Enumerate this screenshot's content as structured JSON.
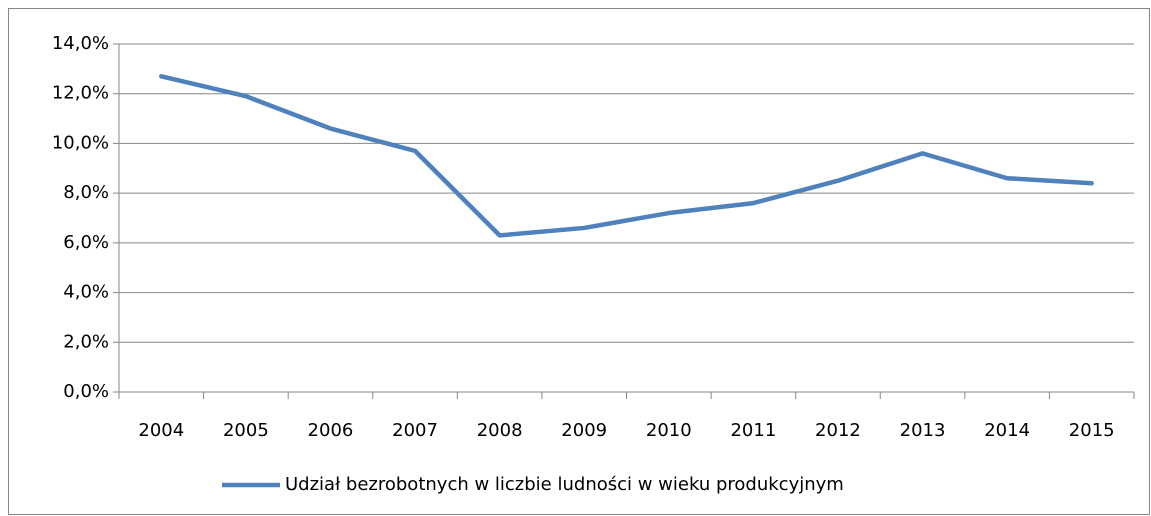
{
  "chart_data": {
    "type": "line",
    "categories": [
      "2004",
      "2005",
      "2006",
      "2007",
      "2008",
      "2009",
      "2010",
      "2011",
      "2012",
      "2013",
      "2014",
      "2015"
    ],
    "series": [
      {
        "name": "Udział bezrobotnych w liczbie ludności w wieku produkcyjnym",
        "color": "#4f81bd",
        "values": [
          12.7,
          11.9,
          10.6,
          9.7,
          6.3,
          6.6,
          7.2,
          7.6,
          8.5,
          9.6,
          8.6,
          8.4
        ]
      }
    ],
    "ylim": [
      0,
      14
    ],
    "yticks": [
      {
        "value": 0,
        "label": "0,0%"
      },
      {
        "value": 2,
        "label": "2,0%"
      },
      {
        "value": 4,
        "label": "4,0%"
      },
      {
        "value": 6,
        "label": "6,0%"
      },
      {
        "value": 8,
        "label": "8,0%"
      },
      {
        "value": 10,
        "label": "10,0%"
      },
      {
        "value": 12,
        "label": "12,0%"
      },
      {
        "value": 14,
        "label": "14,0%"
      }
    ],
    "grid": true,
    "legend": "bottom"
  }
}
